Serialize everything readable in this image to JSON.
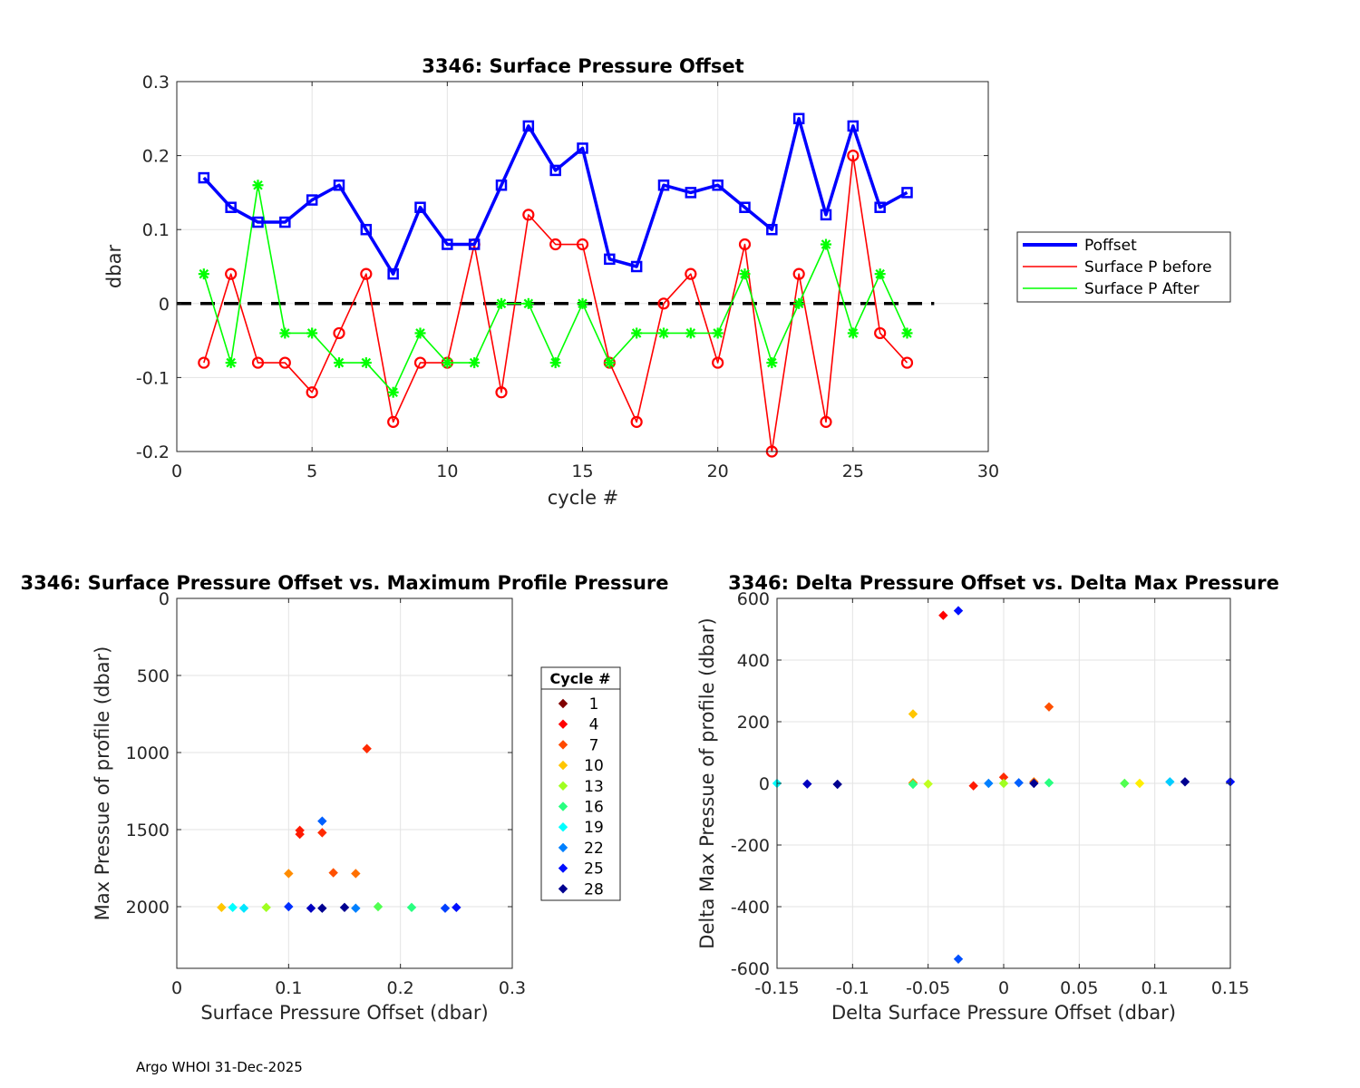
{
  "footer": "Argo WHOI 31-Dec-2025",
  "chart_data": [
    {
      "id": "top",
      "type": "line",
      "title": "3346: Surface Pressure Offset",
      "xlabel": "cycle #",
      "ylabel": "dbar",
      "xlim": [
        0,
        30
      ],
      "ylim": [
        -0.2,
        0.3
      ],
      "xticks": [
        0,
        5,
        10,
        15,
        20,
        25,
        30
      ],
      "yticks": [
        -0.2,
        -0.1,
        0,
        0.1,
        0.2,
        0.3
      ],
      "ytick_labels": [
        "-0.2",
        "-0.1",
        "0",
        "0.1",
        "0.2",
        "0.3"
      ],
      "grid": true,
      "legend_position": "outside-right",
      "zero_line": {
        "x": [
          0,
          28
        ],
        "y": 0,
        "style": "dashed",
        "color": "#000000"
      },
      "x": [
        1,
        2,
        3,
        4,
        5,
        6,
        7,
        8,
        9,
        10,
        11,
        12,
        13,
        14,
        15,
        16,
        17,
        18,
        19,
        20,
        21,
        22,
        23,
        24,
        25,
        26,
        27
      ],
      "series": [
        {
          "name": "Poffset",
          "color": "#0000ff",
          "marker": "square",
          "values": [
            0.17,
            0.13,
            0.11,
            0.11,
            0.14,
            0.16,
            0.1,
            0.04,
            0.13,
            0.08,
            0.08,
            0.16,
            0.24,
            0.18,
            0.21,
            0.06,
            0.05,
            0.16,
            0.15,
            0.16,
            0.13,
            0.1,
            0.25,
            0.12,
            0.24,
            0.13,
            0.15
          ]
        },
        {
          "name": "Surface P before",
          "color": "#ff0000",
          "marker": "circle",
          "values": [
            -0.08,
            0.04,
            -0.08,
            -0.08,
            -0.12,
            -0.04,
            0.04,
            -0.16,
            -0.08,
            -0.08,
            0.08,
            -0.12,
            0.12,
            0.08,
            0.08,
            -0.08,
            -0.16,
            0.0,
            0.04,
            -0.08,
            0.08,
            -0.2,
            0.04,
            -0.16,
            0.2,
            -0.04,
            -0.08
          ]
        },
        {
          "name": "Surface P After",
          "color": "#00ff00",
          "marker": "star",
          "values": [
            0.04,
            -0.08,
            0.16,
            -0.04,
            -0.04,
            -0.08,
            -0.08,
            -0.12,
            -0.04,
            -0.08,
            -0.08,
            0.0,
            0.0,
            -0.08,
            0.0,
            -0.08,
            -0.04,
            -0.04,
            -0.04,
            -0.04,
            0.04,
            -0.08,
            0.0,
            0.08,
            -0.04,
            0.04,
            -0.04
          ]
        }
      ]
    },
    {
      "id": "bottom-left",
      "type": "scatter",
      "title": "3346: Surface Pressure Offset vs. Maximum Profile Pressure",
      "xlabel": "Surface Pressure Offset (dbar)",
      "ylabel": "Max Pressue of profile (dbar)",
      "xlim": [
        0,
        0.3
      ],
      "ylim": [
        0,
        2400
      ],
      "y_reversed": true,
      "xticks": [
        0,
        0.1,
        0.2,
        0.3
      ],
      "xtick_labels": [
        "0",
        "0.1",
        "0.2",
        "0.3"
      ],
      "yticks": [
        0,
        500,
        1000,
        1500,
        2000
      ],
      "grid": true,
      "legend_title": "Cycle #",
      "legend_entries": [
        {
          "label": "1",
          "color": "#800000"
        },
        {
          "label": "4",
          "color": "#ff0000"
        },
        {
          "label": "7",
          "color": "#ff4a00"
        },
        {
          "label": "10",
          "color": "#ffc600"
        },
        {
          "label": "13",
          "color": "#a0ff20"
        },
        {
          "label": "16",
          "color": "#28ff80"
        },
        {
          "label": "19",
          "color": "#00ffff"
        },
        {
          "label": "22",
          "color": "#0080ff"
        },
        {
          "label": "25",
          "color": "#0010ff"
        },
        {
          "label": "28",
          "color": "#000090"
        }
      ],
      "points": [
        {
          "x": 0.17,
          "y": 975,
          "color": "#ff2a00"
        },
        {
          "x": 0.11,
          "y": 1505,
          "color": "#ff1a00"
        },
        {
          "x": 0.11,
          "y": 1530,
          "color": "#ff1a00"
        },
        {
          "x": 0.13,
          "y": 1520,
          "color": "#ff2a00"
        },
        {
          "x": 0.13,
          "y": 1445,
          "color": "#0060ff"
        },
        {
          "x": 0.1,
          "y": 1785,
          "color": "#ff8c00"
        },
        {
          "x": 0.14,
          "y": 1780,
          "color": "#ff5000"
        },
        {
          "x": 0.16,
          "y": 1785,
          "color": "#ff7000"
        },
        {
          "x": 0.04,
          "y": 2005,
          "color": "#ffc600"
        },
        {
          "x": 0.05,
          "y": 2005,
          "color": "#00ffff"
        },
        {
          "x": 0.06,
          "y": 2010,
          "color": "#00e6ff"
        },
        {
          "x": 0.08,
          "y": 2005,
          "color": "#a0ff20"
        },
        {
          "x": 0.1,
          "y": 2000,
          "color": "#0030ff"
        },
        {
          "x": 0.12,
          "y": 2010,
          "color": "#0000c0"
        },
        {
          "x": 0.13,
          "y": 2010,
          "color": "#000090"
        },
        {
          "x": 0.15,
          "y": 2005,
          "color": "#000090"
        },
        {
          "x": 0.16,
          "y": 2010,
          "color": "#0080ff"
        },
        {
          "x": 0.18,
          "y": 2000,
          "color": "#50ff50"
        },
        {
          "x": 0.21,
          "y": 2005,
          "color": "#28ff80"
        },
        {
          "x": 0.24,
          "y": 2010,
          "color": "#0040ff"
        },
        {
          "x": 0.25,
          "y": 2005,
          "color": "#0010ff"
        }
      ]
    },
    {
      "id": "bottom-right",
      "type": "scatter",
      "title": "3346: Delta Pressure Offset vs. Delta Max Pressure",
      "xlabel": "Delta Surface Pressure Offset (dbar)",
      "ylabel": "Delta Max Pressue of profile (dbar)",
      "xlim": [
        -0.15,
        0.15
      ],
      "ylim": [
        -600,
        600
      ],
      "xticks": [
        -0.15,
        -0.1,
        -0.05,
        0,
        0.05,
        0.1,
        0.15
      ],
      "xtick_labels": [
        "-0.15",
        "-0.1",
        "-0.05",
        "0",
        "0.05",
        "0.1",
        "0.15"
      ],
      "yticks": [
        -600,
        -400,
        -200,
        0,
        200,
        400,
        600
      ],
      "grid": true,
      "points": [
        {
          "x": -0.04,
          "y": 545,
          "color": "#ff0000"
        },
        {
          "x": -0.03,
          "y": 560,
          "color": "#0010ff"
        },
        {
          "x": -0.06,
          "y": 225,
          "color": "#ffc600"
        },
        {
          "x": 0.03,
          "y": 248,
          "color": "#ff5000"
        },
        {
          "x": -0.03,
          "y": -570,
          "color": "#0050ff"
        },
        {
          "x": -0.15,
          "y": 0,
          "color": "#00ffff"
        },
        {
          "x": -0.13,
          "y": -2,
          "color": "#0000c0"
        },
        {
          "x": -0.11,
          "y": -3,
          "color": "#000090"
        },
        {
          "x": -0.06,
          "y": 2,
          "color": "#ff8c00"
        },
        {
          "x": -0.06,
          "y": -3,
          "color": "#28ff80"
        },
        {
          "x": -0.05,
          "y": -2,
          "color": "#c0ff20"
        },
        {
          "x": -0.02,
          "y": -8,
          "color": "#ff1a00"
        },
        {
          "x": 0.0,
          "y": 20,
          "color": "#ff2a00"
        },
        {
          "x": 0.0,
          "y": 0,
          "color": "#a0ff20"
        },
        {
          "x": -0.01,
          "y": 0,
          "color": "#0080ff"
        },
        {
          "x": 0.01,
          "y": 2,
          "color": "#0060ff"
        },
        {
          "x": 0.02,
          "y": 5,
          "color": "#ff7000"
        },
        {
          "x": 0.02,
          "y": 0,
          "color": "#000090"
        },
        {
          "x": 0.03,
          "y": 2,
          "color": "#28ff80"
        },
        {
          "x": 0.08,
          "y": 0,
          "color": "#50ff50"
        },
        {
          "x": 0.09,
          "y": 0,
          "color": "#ffee00"
        },
        {
          "x": 0.11,
          "y": 5,
          "color": "#00ccff"
        },
        {
          "x": 0.12,
          "y": 5,
          "color": "#000090"
        },
        {
          "x": 0.15,
          "y": 5,
          "color": "#0010ff"
        }
      ]
    }
  ]
}
